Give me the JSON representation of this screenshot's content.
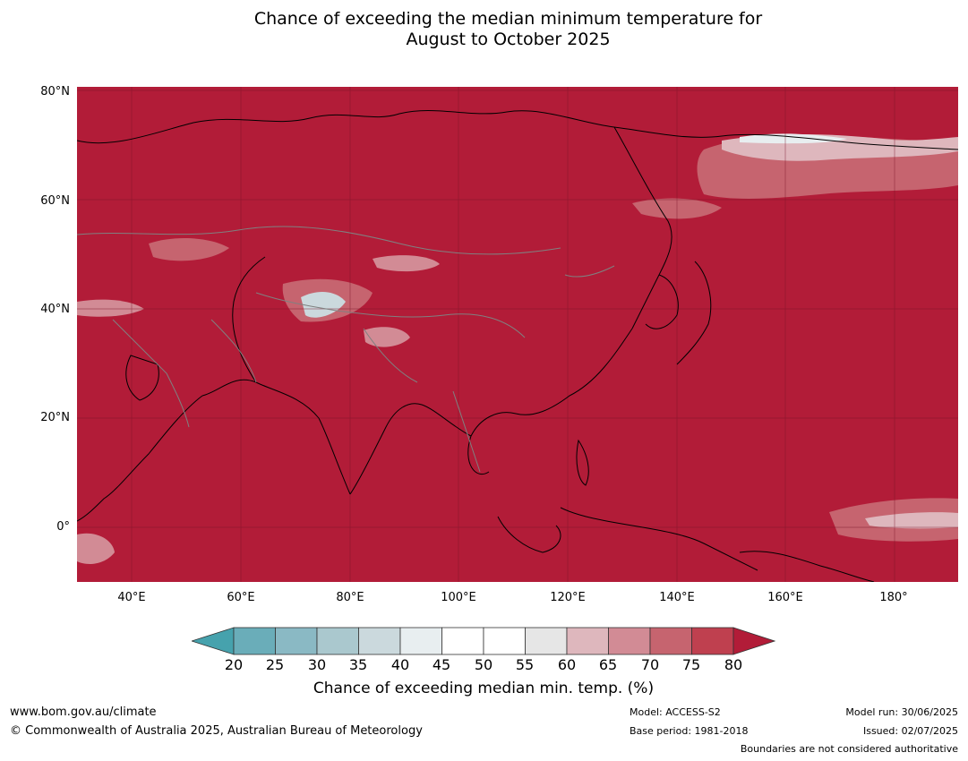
{
  "title": {
    "line1": "Chance of exceeding the median minimum temperature for",
    "line2": "August to October 2025"
  },
  "axes": {
    "lat_labels": [
      "80°N",
      "60°N",
      "40°N",
      "20°N",
      "0°"
    ],
    "lon_labels": [
      "40°E",
      "60°E",
      "80°E",
      "100°E",
      "120°E",
      "140°E",
      "160°E",
      "180°"
    ]
  },
  "map": {
    "region": "Asia and Western Pacific",
    "dominant_category": "80",
    "colors": {
      "c20": "#46a2ad",
      "c25": "#6aadb9",
      "c30": "#8ab9c4",
      "c35": "#aac8ce",
      "c40": "#cbd9dd",
      "c45": "#e8eef0",
      "c50": "#ffffff",
      "c55": "#ffffff",
      "c60": "#e6e6e6",
      "c65": "#deb7bd",
      "c70": "#d28b95",
      "c75": "#c6646f",
      "c80": "#bf404f",
      "over80": "#b21c38",
      "coast": "#000000",
      "border": "#808080"
    }
  },
  "colorbar": {
    "ticks": [
      "20",
      "25",
      "30",
      "35",
      "40",
      "45",
      "50",
      "55",
      "60",
      "65",
      "70",
      "75",
      "80"
    ],
    "label": "Chance of exceeding median min. temp. (%)"
  },
  "footer": {
    "website": "www.bom.gov.au/climate",
    "copyright": "© Commonwealth of Australia 2025, Australian Bureau of Meteorology",
    "model": "Model: ACCESS-S2",
    "base_period": "Base period: 1981-2018",
    "model_run": "Model run: 30/06/2025",
    "issued": "Issued: 02/07/2025",
    "disclaimer": "Boundaries are not considered authoritative"
  }
}
